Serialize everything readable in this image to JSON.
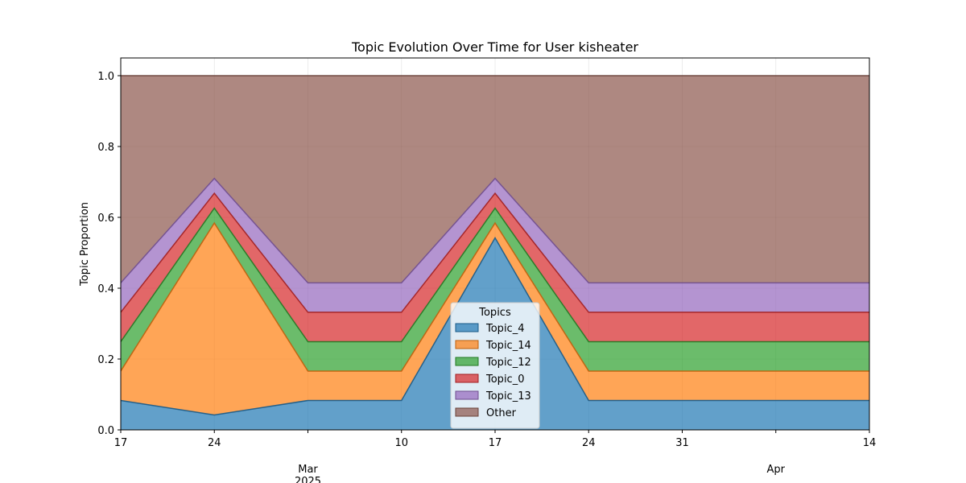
{
  "chart_data": {
    "type": "area",
    "stacked": true,
    "title": "Topic Evolution Over Time for User kisheater",
    "xlabel": "",
    "ylabel": "Topic Proportion",
    "ylim": [
      0,
      1.05
    ],
    "yticks": [
      0.0,
      0.2,
      0.4,
      0.6,
      0.8,
      1.0
    ],
    "ytick_labels": [
      "0.0",
      "0.2",
      "0.4",
      "0.6",
      "0.8",
      "1.0"
    ],
    "grid": true,
    "x": [
      "2025-02-17",
      "2025-02-24",
      "2025-03-03",
      "2025-03-10",
      "2025-03-17",
      "2025-03-24",
      "2025-03-31",
      "2025-04-07",
      "2025-04-14"
    ],
    "xticks": [
      {
        "date": "2025-02-17",
        "label": "17",
        "sub": ""
      },
      {
        "date": "2025-02-24",
        "label": "24",
        "sub": ""
      },
      {
        "date": "2025-03-03",
        "label": "",
        "sub": "Mar\n2025"
      },
      {
        "date": "2025-03-10",
        "label": "10",
        "sub": ""
      },
      {
        "date": "2025-03-17",
        "label": "17",
        "sub": ""
      },
      {
        "date": "2025-03-24",
        "label": "24",
        "sub": ""
      },
      {
        "date": "2025-03-31",
        "label": "31",
        "sub": ""
      },
      {
        "date": "2025-04-07",
        "label": "",
        "sub": "Apr"
      },
      {
        "date": "2025-04-14",
        "label": "14",
        "sub": ""
      }
    ],
    "legend": {
      "title": "Topics",
      "placement": "lower-center"
    },
    "series": [
      {
        "name": "Topic_4",
        "color": "#1f77b4",
        "values": [
          0.083,
          0.042,
          0.083,
          0.083,
          0.542,
          0.083,
          0.083,
          0.083,
          0.083
        ]
      },
      {
        "name": "Topic_14",
        "color": "#ff7f0e",
        "values": [
          0.083,
          0.542,
          0.083,
          0.083,
          0.042,
          0.083,
          0.083,
          0.083,
          0.083
        ]
      },
      {
        "name": "Topic_12",
        "color": "#2ca02c",
        "values": [
          0.083,
          0.042,
          0.083,
          0.083,
          0.042,
          0.083,
          0.083,
          0.083,
          0.083
        ]
      },
      {
        "name": "Topic_0",
        "color": "#d62728",
        "values": [
          0.083,
          0.042,
          0.083,
          0.083,
          0.042,
          0.083,
          0.083,
          0.083,
          0.083
        ]
      },
      {
        "name": "Topic_13",
        "color": "#9467bd",
        "values": [
          0.083,
          0.042,
          0.083,
          0.083,
          0.042,
          0.083,
          0.083,
          0.083,
          0.083
        ]
      },
      {
        "name": "Other",
        "color": "#8c564b",
        "values": [
          0.585,
          0.29,
          0.585,
          0.585,
          0.29,
          0.585,
          0.585,
          0.585,
          0.585
        ]
      }
    ]
  }
}
